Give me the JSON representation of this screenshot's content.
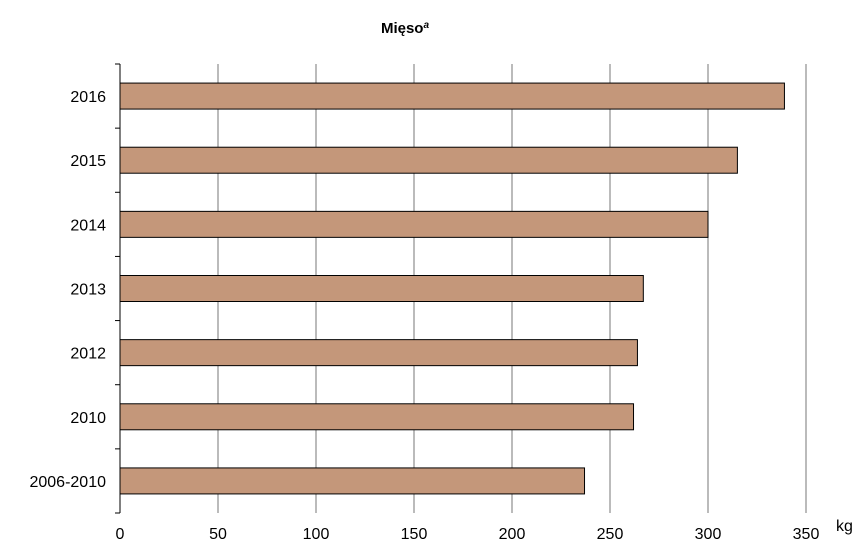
{
  "chart_data": {
    "type": "bar",
    "orientation": "horizontal",
    "title": "Mięso",
    "title_superscript": "a",
    "categories": [
      "2016",
      "2015",
      "2014",
      "2013",
      "2012",
      "2010",
      "2006-2010"
    ],
    "values": [
      339,
      315,
      300,
      267,
      264,
      262,
      237
    ],
    "xlabel": "kg",
    "ylabel": "",
    "xlim": [
      0,
      350
    ],
    "xticks": [
      0,
      50,
      100,
      150,
      200,
      250,
      300,
      350
    ],
    "grid": true,
    "legend": "none",
    "colors": {
      "bar": "#c4977a",
      "grid": "#777777"
    }
  }
}
